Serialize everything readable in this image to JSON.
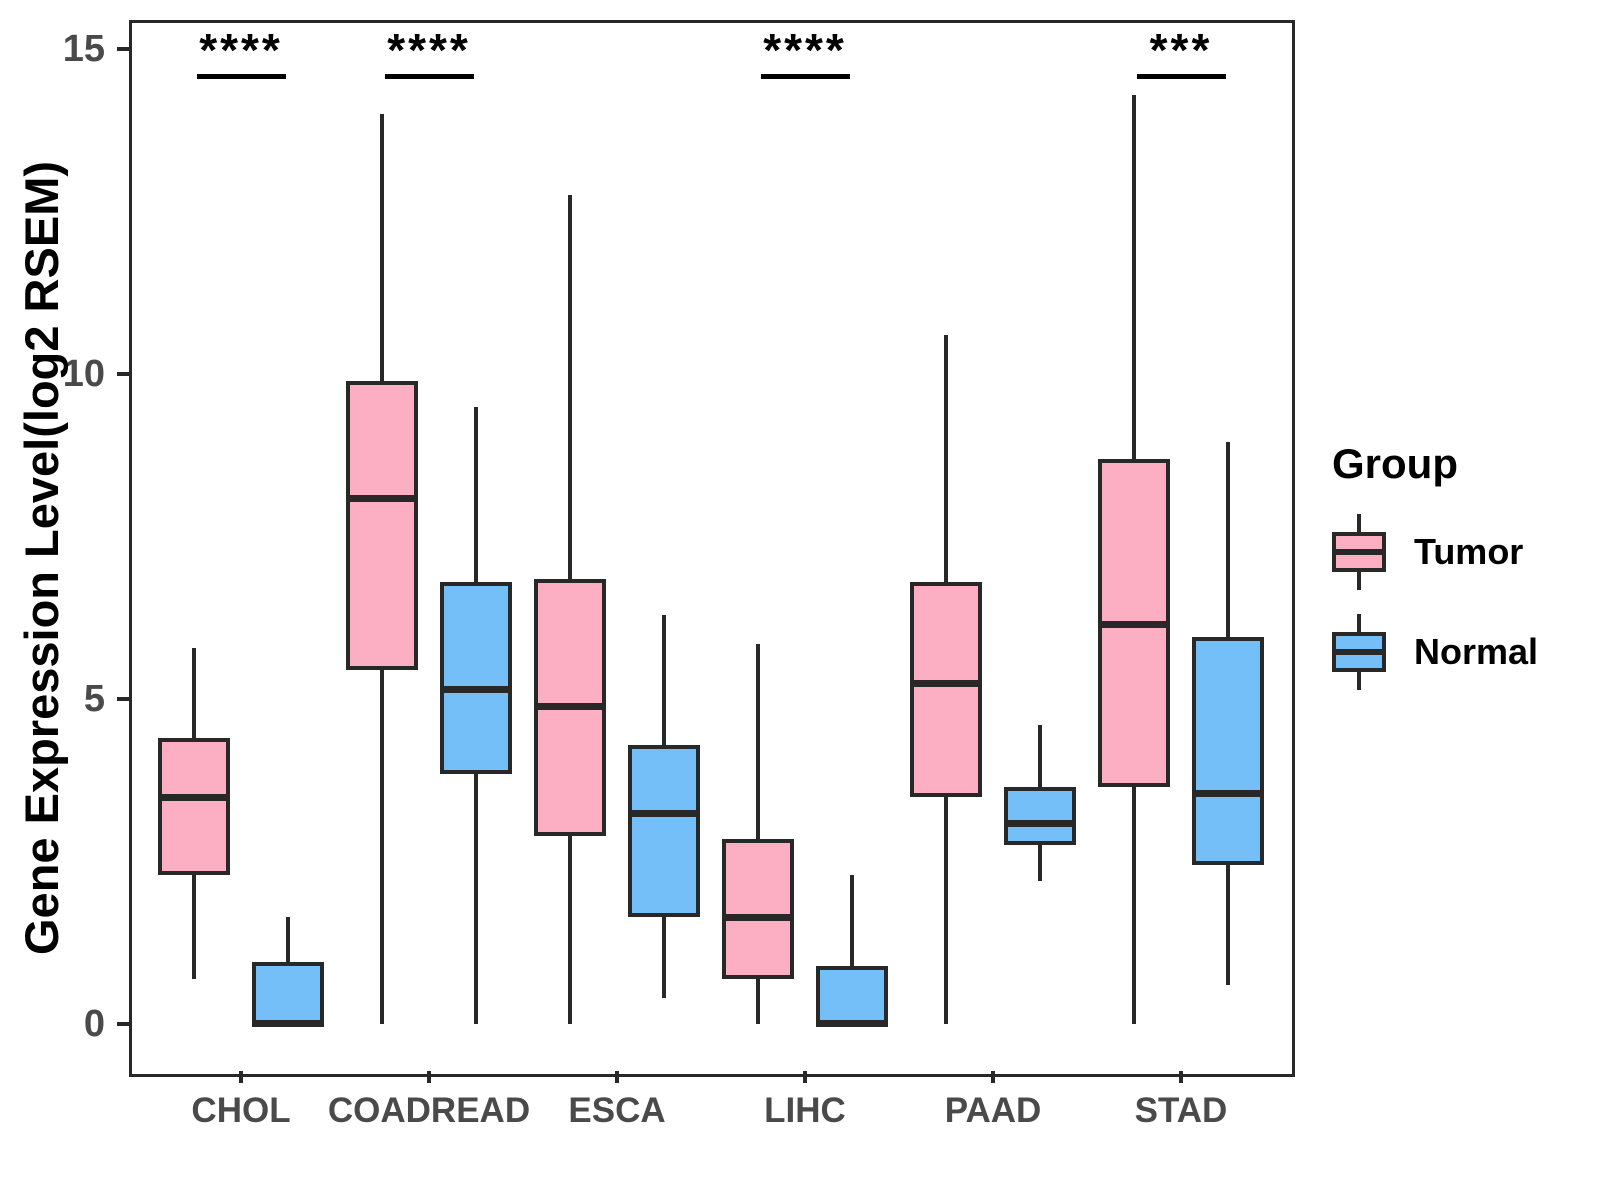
{
  "chart_data": {
    "type": "boxplot",
    "title": "",
    "xlabel": "",
    "ylabel": "Gene Expression Level(log2 RSEM)",
    "categories": [
      "CHOL",
      "COADREAD",
      "ESCA",
      "LIHC",
      "PAAD",
      "STAD"
    ],
    "y_axis": {
      "ticks": [
        0,
        5,
        10,
        15
      ],
      "ylim": [
        -0.7,
        15.5
      ],
      "grid": false
    },
    "series": [
      {
        "name": "Tumor",
        "color": "#FCAFC2",
        "boxes": [
          {
            "category": "CHOL",
            "min": 0.7,
            "q1": 2.3,
            "median": 3.5,
            "q3": 4.4,
            "max": 5.78
          },
          {
            "category": "COADREAD",
            "min": 0.0,
            "q1": 5.45,
            "median": 8.1,
            "q3": 9.9,
            "max": 14.0
          },
          {
            "category": "ESCA",
            "min": 0.0,
            "q1": 2.9,
            "median": 4.9,
            "q3": 6.85,
            "max": 12.75
          },
          {
            "category": "LIHC",
            "min": 0.0,
            "q1": 0.7,
            "median": 1.65,
            "q3": 2.85,
            "max": 5.85
          },
          {
            "category": "PAAD",
            "min": 0.0,
            "q1": 3.5,
            "median": 5.25,
            "q3": 6.8,
            "max": 10.6
          },
          {
            "category": "STAD",
            "min": 0.0,
            "q1": 3.65,
            "median": 6.15,
            "q3": 8.7,
            "max": 14.3
          }
        ]
      },
      {
        "name": "Normal",
        "color": "#74BFF7",
        "boxes": [
          {
            "category": "CHOL",
            "min": 0.0,
            "q1": 0.0,
            "median": 0.02,
            "q3": 0.95,
            "max": 1.65
          },
          {
            "category": "COADREAD",
            "min": 0.0,
            "q1": 3.85,
            "median": 5.15,
            "q3": 6.8,
            "max": 9.5
          },
          {
            "category": "ESCA",
            "min": 0.4,
            "q1": 1.65,
            "median": 3.25,
            "q3": 4.3,
            "max": 6.3
          },
          {
            "category": "LIHC",
            "min": 0.0,
            "q1": 0.0,
            "median": 0.02,
            "q3": 0.9,
            "max": 2.3
          },
          {
            "category": "PAAD",
            "min": 2.2,
            "q1": 2.75,
            "median": 3.1,
            "q3": 3.65,
            "max": 4.6
          },
          {
            "category": "STAD",
            "min": 0.6,
            "q1": 2.45,
            "median": 3.55,
            "q3": 5.95,
            "max": 8.95
          }
        ]
      }
    ],
    "annotations": [
      {
        "category": "CHOL",
        "label": "****"
      },
      {
        "category": "COADREAD",
        "label": "****"
      },
      {
        "category": "LIHC",
        "label": "****"
      },
      {
        "category": "STAD",
        "label": "***"
      }
    ],
    "legend": {
      "title": "Group",
      "position": "right",
      "entries": [
        "Tumor",
        "Normal"
      ]
    }
  }
}
